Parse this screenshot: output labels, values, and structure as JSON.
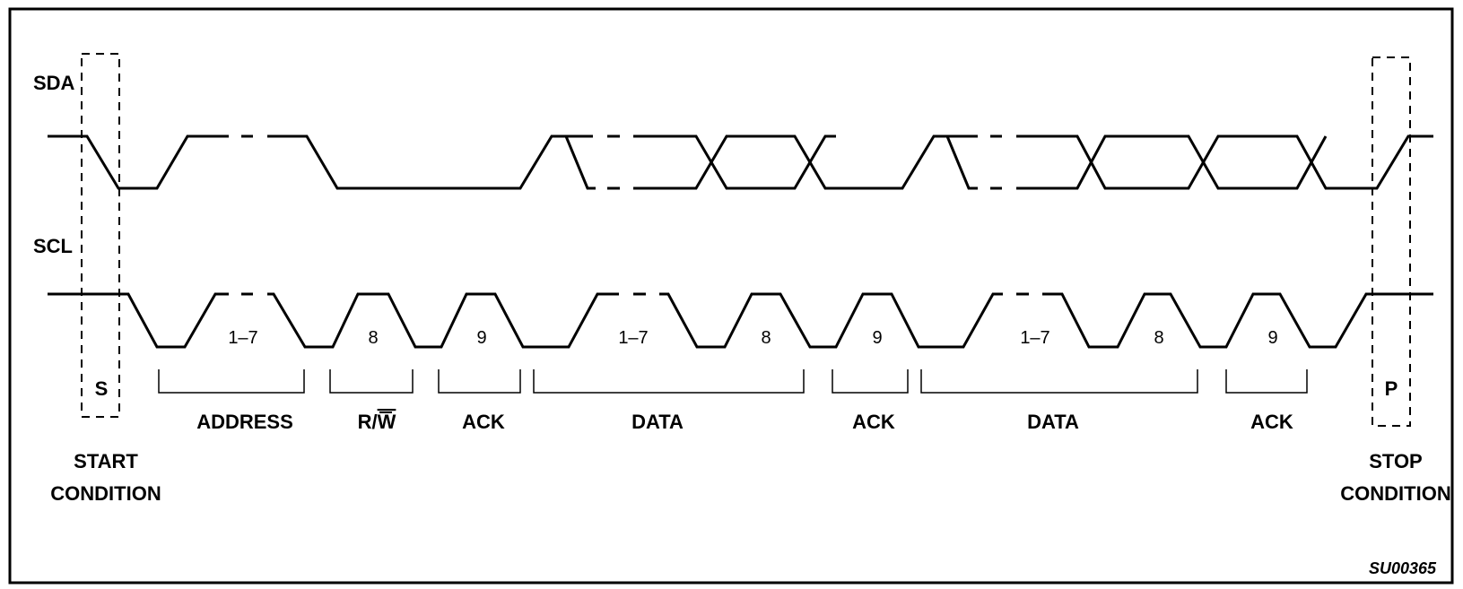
{
  "signals": {
    "sda": "SDA",
    "scl": "SCL"
  },
  "markers": {
    "start": "S",
    "stop": "P"
  },
  "bit_labels": {
    "address_bits": "1–7",
    "rw_bit": "8",
    "ack_bit_1": "9",
    "data1_bits": "1–7",
    "data1_bit8": "8",
    "ack_bit_2": "9",
    "data2_bits": "1–7",
    "data2_bit8": "8",
    "ack_bit_3": "9"
  },
  "groups": {
    "address": "ADDRESS",
    "rw": "R/",
    "rw_overlined": "W",
    "ack1": "ACK",
    "data1": "DATA",
    "ack2": "ACK",
    "data2": "DATA",
    "ack3": "ACK"
  },
  "conditions": {
    "start_line1": "START",
    "start_line2": "CONDITION",
    "stop_line1": "STOP",
    "stop_line2": "CONDITION"
  },
  "figure_code": "SU00365"
}
